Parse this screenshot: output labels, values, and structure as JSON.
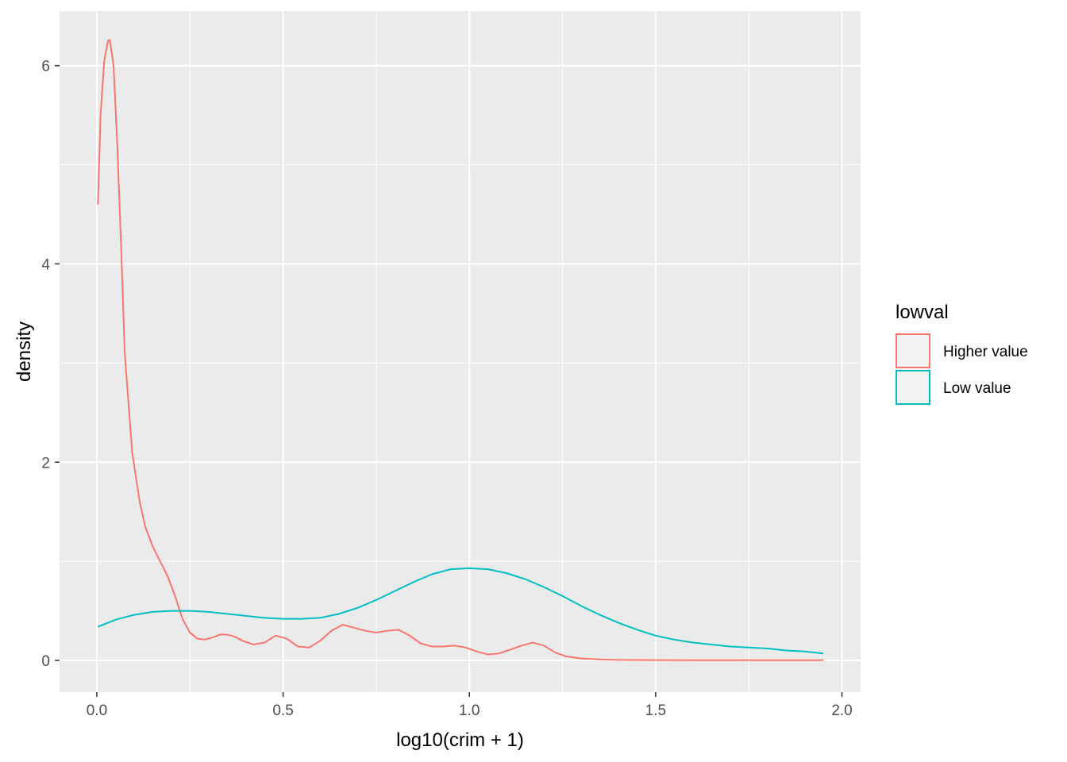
{
  "chart_data": {
    "type": "line",
    "subtype": "density",
    "title": "",
    "xlabel": "log10(crim + 1)",
    "ylabel": "density",
    "xlim": [
      -0.1,
      2.05
    ],
    "ylim": [
      -0.32,
      6.55
    ],
    "x_ticks": [
      0.0,
      0.5,
      1.0,
      1.5,
      2.0
    ],
    "x_tick_labels": [
      "0.0",
      "0.5",
      "1.0",
      "1.5",
      "2.0"
    ],
    "y_ticks": [
      0,
      2,
      4,
      6
    ],
    "y_tick_labels": [
      "0",
      "2",
      "4",
      "6"
    ],
    "grid": true,
    "legend_position": "right",
    "legend_title": "lowval",
    "panel_background": "#ebebeb",
    "series": [
      {
        "name": "Higher value",
        "color": "#F8766D",
        "x": [
          0.003,
          0.01,
          0.02,
          0.03,
          0.035,
          0.045,
          0.055,
          0.065,
          0.075,
          0.085,
          0.095,
          0.105,
          0.115,
          0.13,
          0.15,
          0.17,
          0.19,
          0.21,
          0.23,
          0.25,
          0.27,
          0.29,
          0.31,
          0.33,
          0.35,
          0.37,
          0.39,
          0.42,
          0.45,
          0.48,
          0.51,
          0.54,
          0.57,
          0.6,
          0.63,
          0.66,
          0.69,
          0.72,
          0.75,
          0.78,
          0.81,
          0.84,
          0.87,
          0.9,
          0.93,
          0.96,
          0.99,
          1.02,
          1.05,
          1.08,
          1.11,
          1.14,
          1.17,
          1.2,
          1.23,
          1.26,
          1.3,
          1.35,
          1.4,
          1.5,
          1.6,
          1.7,
          1.8,
          1.95
        ],
        "y": [
          4.6,
          5.5,
          6.05,
          6.25,
          6.26,
          6.0,
          5.2,
          4.2,
          3.1,
          2.6,
          2.1,
          1.85,
          1.6,
          1.35,
          1.15,
          1.0,
          0.85,
          0.65,
          0.42,
          0.28,
          0.22,
          0.21,
          0.23,
          0.26,
          0.26,
          0.24,
          0.2,
          0.16,
          0.18,
          0.25,
          0.22,
          0.14,
          0.13,
          0.2,
          0.3,
          0.36,
          0.33,
          0.3,
          0.28,
          0.3,
          0.31,
          0.25,
          0.17,
          0.14,
          0.14,
          0.15,
          0.13,
          0.09,
          0.06,
          0.07,
          0.11,
          0.15,
          0.18,
          0.15,
          0.08,
          0.04,
          0.02,
          0.01,
          0.005,
          0.003,
          0.002,
          0.002,
          0.002,
          0.002
        ]
      },
      {
        "name": "Low value",
        "color": "#00BFC4",
        "x": [
          0.003,
          0.05,
          0.1,
          0.15,
          0.2,
          0.25,
          0.3,
          0.35,
          0.4,
          0.45,
          0.5,
          0.55,
          0.6,
          0.65,
          0.7,
          0.75,
          0.8,
          0.85,
          0.9,
          0.95,
          1.0,
          1.05,
          1.1,
          1.15,
          1.2,
          1.25,
          1.3,
          1.35,
          1.4,
          1.45,
          1.5,
          1.55,
          1.6,
          1.65,
          1.7,
          1.75,
          1.8,
          1.85,
          1.9,
          1.95
        ],
        "y": [
          0.34,
          0.41,
          0.46,
          0.49,
          0.5,
          0.5,
          0.49,
          0.47,
          0.45,
          0.43,
          0.42,
          0.42,
          0.43,
          0.47,
          0.53,
          0.61,
          0.7,
          0.79,
          0.87,
          0.92,
          0.93,
          0.92,
          0.88,
          0.82,
          0.74,
          0.65,
          0.55,
          0.46,
          0.38,
          0.31,
          0.25,
          0.21,
          0.18,
          0.16,
          0.14,
          0.13,
          0.12,
          0.1,
          0.09,
          0.07
        ]
      }
    ]
  }
}
